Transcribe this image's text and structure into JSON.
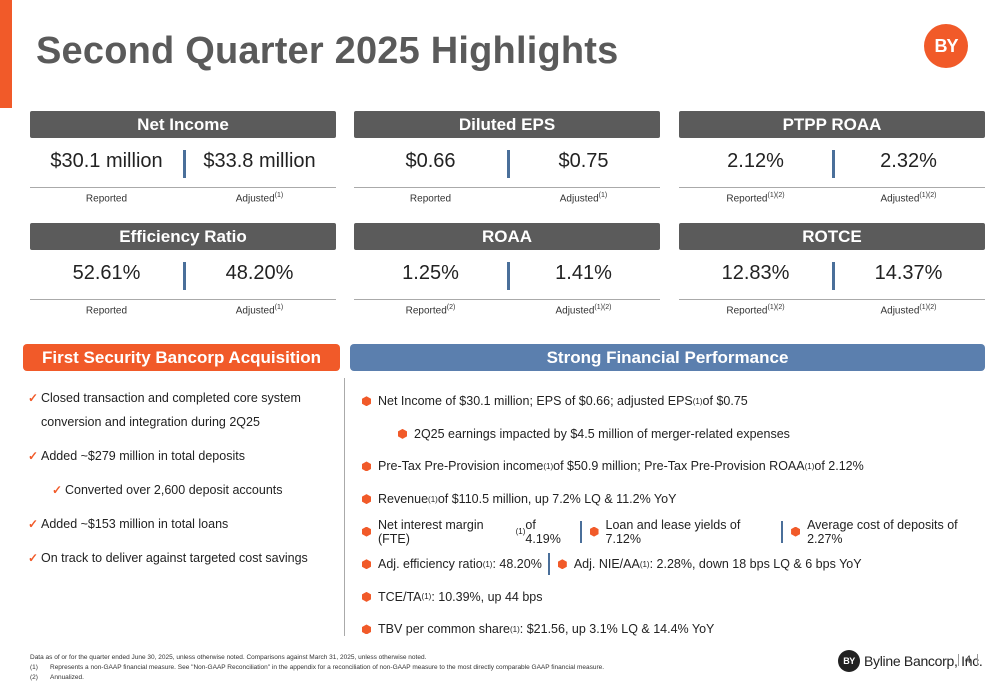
{
  "header": {
    "title": "Second Quarter 2025 Highlights",
    "logo_text": "BY"
  },
  "kpis": [
    {
      "title": "Net Income",
      "reported": "$30.1 million",
      "adjusted": "$33.8 million",
      "reported_label": "Reported",
      "reported_sup": "",
      "adjusted_label": "Adjusted",
      "adjusted_sup": "(1)"
    },
    {
      "title": "Diluted EPS",
      "reported": "$0.66",
      "adjusted": "$0.75",
      "reported_label": "Reported",
      "reported_sup": "",
      "adjusted_label": "Adjusted",
      "adjusted_sup": "(1)"
    },
    {
      "title": "PTPP ROAA",
      "reported": "2.12%",
      "adjusted": "2.32%",
      "reported_label": "Reported",
      "reported_sup": "(1)(2)",
      "adjusted_label": "Adjusted",
      "adjusted_sup": "(1)(2)"
    },
    {
      "title": "Efficiency Ratio",
      "reported": "52.61%",
      "adjusted": "48.20%",
      "reported_label": "Reported",
      "reported_sup": "",
      "adjusted_label": "Adjusted",
      "adjusted_sup": "(1)"
    },
    {
      "title": "ROAA",
      "reported": "1.25%",
      "adjusted": "1.41%",
      "reported_label": "Reported",
      "reported_sup": "(2)",
      "adjusted_label": "Adjusted",
      "adjusted_sup": "(1)(2)"
    },
    {
      "title": "ROTCE",
      "reported": "12.83%",
      "adjusted": "14.37%",
      "reported_label": "Reported",
      "reported_sup": "(1)(2)",
      "adjusted_label": "Adjusted",
      "adjusted_sup": "(1)(2)"
    }
  ],
  "acquisition": {
    "title": "First Security Bancorp Acquisition",
    "items": [
      "Closed transaction and completed core system conversion and integration during 2Q25",
      "Added ~$279 million in total deposits",
      "Converted over 2,600 deposit accounts",
      "Added ~$153 million in total loans",
      "On track to deliver against targeted cost savings"
    ]
  },
  "performance": {
    "title": "Strong Financial Performance",
    "r1": {
      "a": "Net Income of $30.1 million; EPS of $0.66; adjusted EPS",
      "sup": "(1)",
      "b": " of $0.75"
    },
    "r2": {
      "a": "2Q25 earnings impacted by $4.5 million of merger-related expenses"
    },
    "r3": {
      "a": "Pre-Tax Pre-Provision income",
      "sup1": "(1)",
      "b": " of $50.9 million; Pre-Tax Pre-Provision ROAA",
      "sup2": "(1)",
      "c": " of 2.12%"
    },
    "r4": {
      "a": "Revenue",
      "sup": "(1)",
      "b": " of $110.5 million, up 7.2% LQ & 11.2% YoY"
    },
    "r5": {
      "a": "Net interest margin (FTE)",
      "sup": "(1)",
      "b": " of 4.19%",
      "c": "Loan and lease yields of 7.12%",
      "d": "Average cost of deposits of 2.27%"
    },
    "r6": {
      "a": "Adj. efficiency ratio",
      "sup1": "(1)",
      "b": ": 48.20%",
      "c": "Adj. NIE/AA",
      "sup2": "(1)",
      "d": ": 2.28%, down 18 bps LQ & 6 bps YoY"
    },
    "r7": {
      "a": "TCE/TA",
      "sup": "(1)",
      "b": ": 10.39%, up 44 bps"
    },
    "r8": {
      "a": "TBV per common share",
      "sup": "(1)",
      "b": ": $21.56, up 3.1% LQ & 14.4% YoY"
    }
  },
  "footer": {
    "note": "Data as of or for the quarter ended June 30, 2025, unless otherwise noted. Comparisons against March 31, 2025, unless otherwise noted.",
    "fn1_num": "(1)",
    "fn1": "Represents a non-GAAP financial measure.  See \"Non-GAAP Reconciliation\" in the appendix for a reconciliation of non-GAAP measure to the most directly comparable GAAP financial measure.",
    "fn2_num": "(2)",
    "fn2": "Annualized.",
    "brand_mark": "BY",
    "brand_name": "Byline Bancorp, Inc.",
    "page": "4"
  },
  "colors": {
    "accent": "#f15a29",
    "header_gray": "#5b5b5b",
    "blue": "#5b7fae",
    "divider": "#4a6f9a"
  }
}
